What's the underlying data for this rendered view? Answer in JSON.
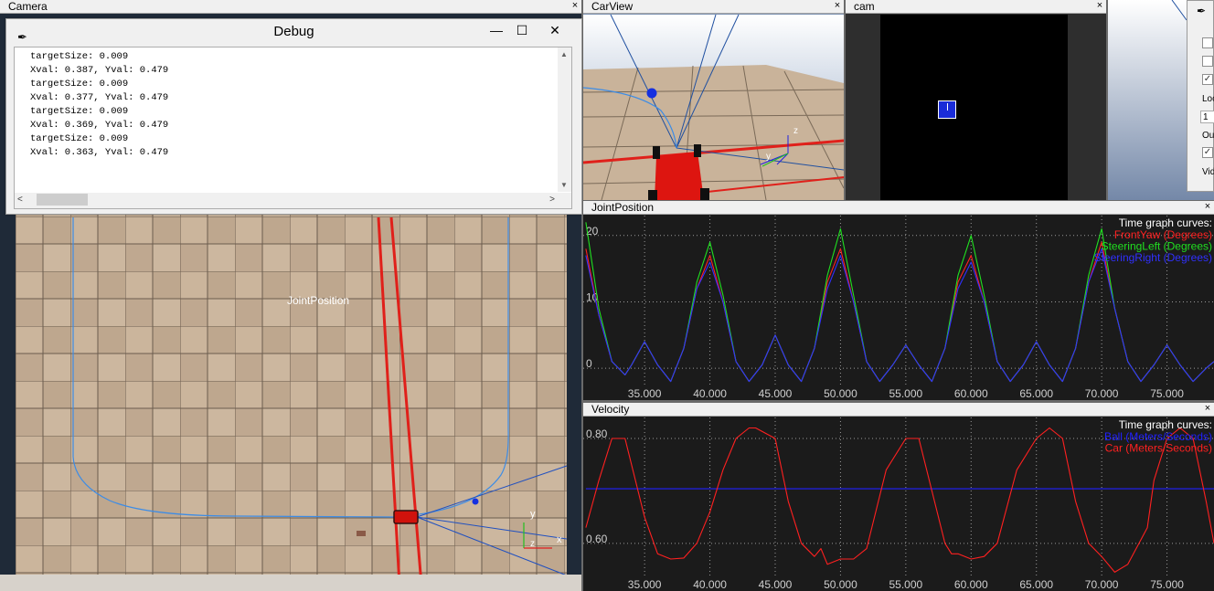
{
  "camera_panel": {
    "title": "Camera",
    "close_label": "×"
  },
  "debug_window": {
    "title": "Debug",
    "icon": "feather-icon",
    "minimize_label": "—",
    "maximize_label": "☐",
    "close_label": "✕",
    "log_lines": [
      "targetSize: 0.009",
      "Xval: 0.387, Yval: 0.479",
      "targetSize: 0.009",
      "Xval: 0.377, Yval: 0.479",
      "targetSize: 0.009",
      "Xval: 0.369, Yval: 0.479",
      "targetSize: 0.009",
      "Xval: 0.363, Yval: 0.479"
    ]
  },
  "scene": {
    "floating_label": "JointPosition",
    "axis_y": "y",
    "axis_x": "x",
    "axis_z": "z"
  },
  "carview_panel": {
    "title": "CarView",
    "close_label": "×",
    "axis_z": "z",
    "axis_y": "y"
  },
  "cam_panel": {
    "title": "cam",
    "close_label": "×"
  },
  "settings_panel": {
    "labels": [
      "Loo",
      "1",
      "Ou",
      "Vid"
    ],
    "checkboxes": [
      false,
      false,
      true,
      true
    ]
  },
  "joint_panel": {
    "title": "JointPosition",
    "close_label": "×"
  },
  "velocity_panel": {
    "title": "Velocity",
    "close_label": "×"
  },
  "chart_data": [
    {
      "type": "line",
      "title": "JointPosition",
      "legend_title": "Time graph curves:",
      "legend_position": "top-right",
      "grid": true,
      "xlim": [
        30.3,
        78.6
      ],
      "ylim": [
        -2.6,
        23
      ],
      "x_ticks": [
        "35.000",
        "40.000",
        "45.000",
        "50.000",
        "55.000",
        "60.000",
        "65.000",
        "70.000",
        "75.000"
      ],
      "y_ticks": [
        "20",
        "10",
        "0"
      ],
      "series": [
        {
          "name": "FrontYaw (Degrees)",
          "color": "#ff2020"
        },
        {
          "name": "SteeringLeft (Degrees)",
          "color": "#20e020"
        },
        {
          "name": "SteeringRight (Degrees)",
          "color": "#3030ff"
        }
      ],
      "x": [
        30.5,
        31.5,
        32.5,
        33.5,
        34.0,
        35.0,
        36.0,
        37.0,
        38.0,
        39.0,
        40.0,
        41.0,
        42.0,
        43.0,
        44.0,
        45.0,
        46.0,
        47.0,
        48.0,
        49.0,
        50.0,
        51.0,
        52.0,
        53.0,
        54.0,
        55.0,
        56.0,
        57.0,
        58.0,
        59.0,
        60.0,
        61.0,
        62.0,
        63.0,
        64.0,
        65.0,
        66.0,
        67.0,
        68.0,
        69.0,
        70.0,
        71.0,
        72.0,
        73.0,
        74.0,
        75.0,
        76.0,
        77.0,
        78.0,
        78.6
      ],
      "values": {
        "FrontYaw (Degrees)": [
          18,
          8,
          1,
          -1,
          0.5,
          4,
          0.5,
          -2,
          3,
          12,
          17,
          10,
          1,
          -2,
          0.5,
          5,
          0.5,
          -2,
          3,
          13,
          18,
          10,
          1,
          -2,
          0.5,
          3.5,
          0.5,
          -2,
          3,
          13,
          17,
          10,
          1,
          -2,
          0.5,
          4,
          0.5,
          -2,
          3,
          13,
          19,
          9,
          1,
          -2,
          0.5,
          3.5,
          0.5,
          -2,
          0,
          1
        ],
        "SteeringLeft (Degrees)": [
          22,
          9,
          1,
          -1,
          0.5,
          4,
          0.5,
          -2,
          3,
          13,
          19,
          11,
          1,
          -2,
          0.5,
          5,
          0.5,
          -2,
          3,
          14,
          21,
          11,
          1,
          -2,
          0.5,
          3.5,
          0.5,
          -2,
          3,
          14,
          20,
          11,
          1,
          -2,
          0.5,
          4,
          0.5,
          -2,
          3,
          14,
          21,
          9,
          1,
          -2,
          0.5,
          3.5,
          0.5,
          -2,
          0,
          1
        ],
        "SteeringRight (Degrees)": [
          17,
          8,
          1,
          -1,
          0.5,
          4,
          0.5,
          -2,
          3,
          12,
          16,
          10,
          1,
          -2,
          0.5,
          5,
          0.5,
          -2,
          3,
          12,
          17,
          10,
          1,
          -2,
          0.5,
          3.5,
          0.5,
          -2,
          3,
          12,
          16,
          10,
          1,
          -2,
          0.5,
          4,
          0.5,
          -2,
          3,
          13,
          18,
          9,
          1,
          -2,
          0.5,
          3.5,
          0.5,
          -2,
          0,
          1
        ]
      }
    },
    {
      "type": "line",
      "title": "Velocity",
      "legend_title": "Time graph curves:",
      "legend_position": "top-right",
      "grid": true,
      "xlim": [
        30.3,
        78.6
      ],
      "ylim": [
        0.537,
        0.84
      ],
      "x_ticks": [
        "35.000",
        "40.000",
        "45.000",
        "50.000",
        "55.000",
        "60.000",
        "65.000",
        "70.000",
        "75.000"
      ],
      "y_ticks": [
        "0.80",
        "0.60"
      ],
      "series": [
        {
          "name": "Ball (Meters/Seconds)",
          "color": "#2020ff"
        },
        {
          "name": "Car (Meters/Seconds)",
          "color": "#ff2020"
        }
      ],
      "x": [
        30.5,
        31.5,
        32.5,
        33.0,
        33.5,
        35.0,
        36.0,
        37.0,
        38.0,
        39.0,
        40.0,
        41.0,
        42.0,
        43.0,
        43.5,
        45.0,
        46.0,
        47.0,
        48.0,
        48.5,
        49.0,
        50.0,
        51.0,
        52.0,
        53.5,
        55.0,
        56.0,
        57.0,
        58.0,
        58.5,
        59.0,
        60.0,
        61.0,
        62.0,
        63.5,
        65.0,
        66.0,
        67.0,
        68.0,
        69.0,
        70.0,
        71.0,
        72.0,
        73.5,
        74.0,
        75.0,
        76.0,
        77.0,
        78.0,
        78.6
      ],
      "values": {
        "Ball (Meters/Seconds)": [
          0.704,
          0.704,
          0.704,
          0.704,
          0.704,
          0.704,
          0.704,
          0.704,
          0.704,
          0.704,
          0.704,
          0.704,
          0.704,
          0.704,
          0.704,
          0.704,
          0.704,
          0.704,
          0.704,
          0.704,
          0.704,
          0.704,
          0.704,
          0.704,
          0.704,
          0.704,
          0.704,
          0.704,
          0.704,
          0.704,
          0.704,
          0.704,
          0.704,
          0.704,
          0.704,
          0.704,
          0.704,
          0.704,
          0.704,
          0.704,
          0.704,
          0.704,
          0.704,
          0.704,
          0.704,
          0.704,
          0.704,
          0.704,
          0.704,
          0.704
        ],
        "Car (Meters/Seconds)": [
          0.63,
          0.72,
          0.8,
          0.8,
          0.8,
          0.65,
          0.58,
          0.57,
          0.572,
          0.6,
          0.66,
          0.74,
          0.8,
          0.82,
          0.82,
          0.8,
          0.68,
          0.6,
          0.575,
          0.59,
          0.56,
          0.57,
          0.57,
          0.59,
          0.74,
          0.8,
          0.8,
          0.7,
          0.6,
          0.58,
          0.58,
          0.57,
          0.575,
          0.6,
          0.74,
          0.8,
          0.82,
          0.8,
          0.68,
          0.6,
          0.575,
          0.545,
          0.56,
          0.63,
          0.72,
          0.8,
          0.82,
          0.8,
          0.68,
          0.6
        ]
      }
    }
  ]
}
